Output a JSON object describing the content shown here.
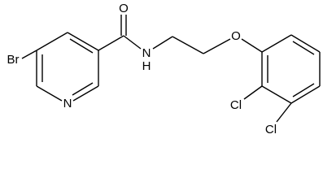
{
  "atoms": [
    {
      "label": "Br"
    },
    {
      "label": "N"
    },
    {
      "label": "O"
    },
    {
      "label": "N"
    },
    {
      "label": "H"
    },
    {
      "label": "O"
    },
    {
      "label": "Cl"
    },
    {
      "label": "Cl"
    }
  ]
}
